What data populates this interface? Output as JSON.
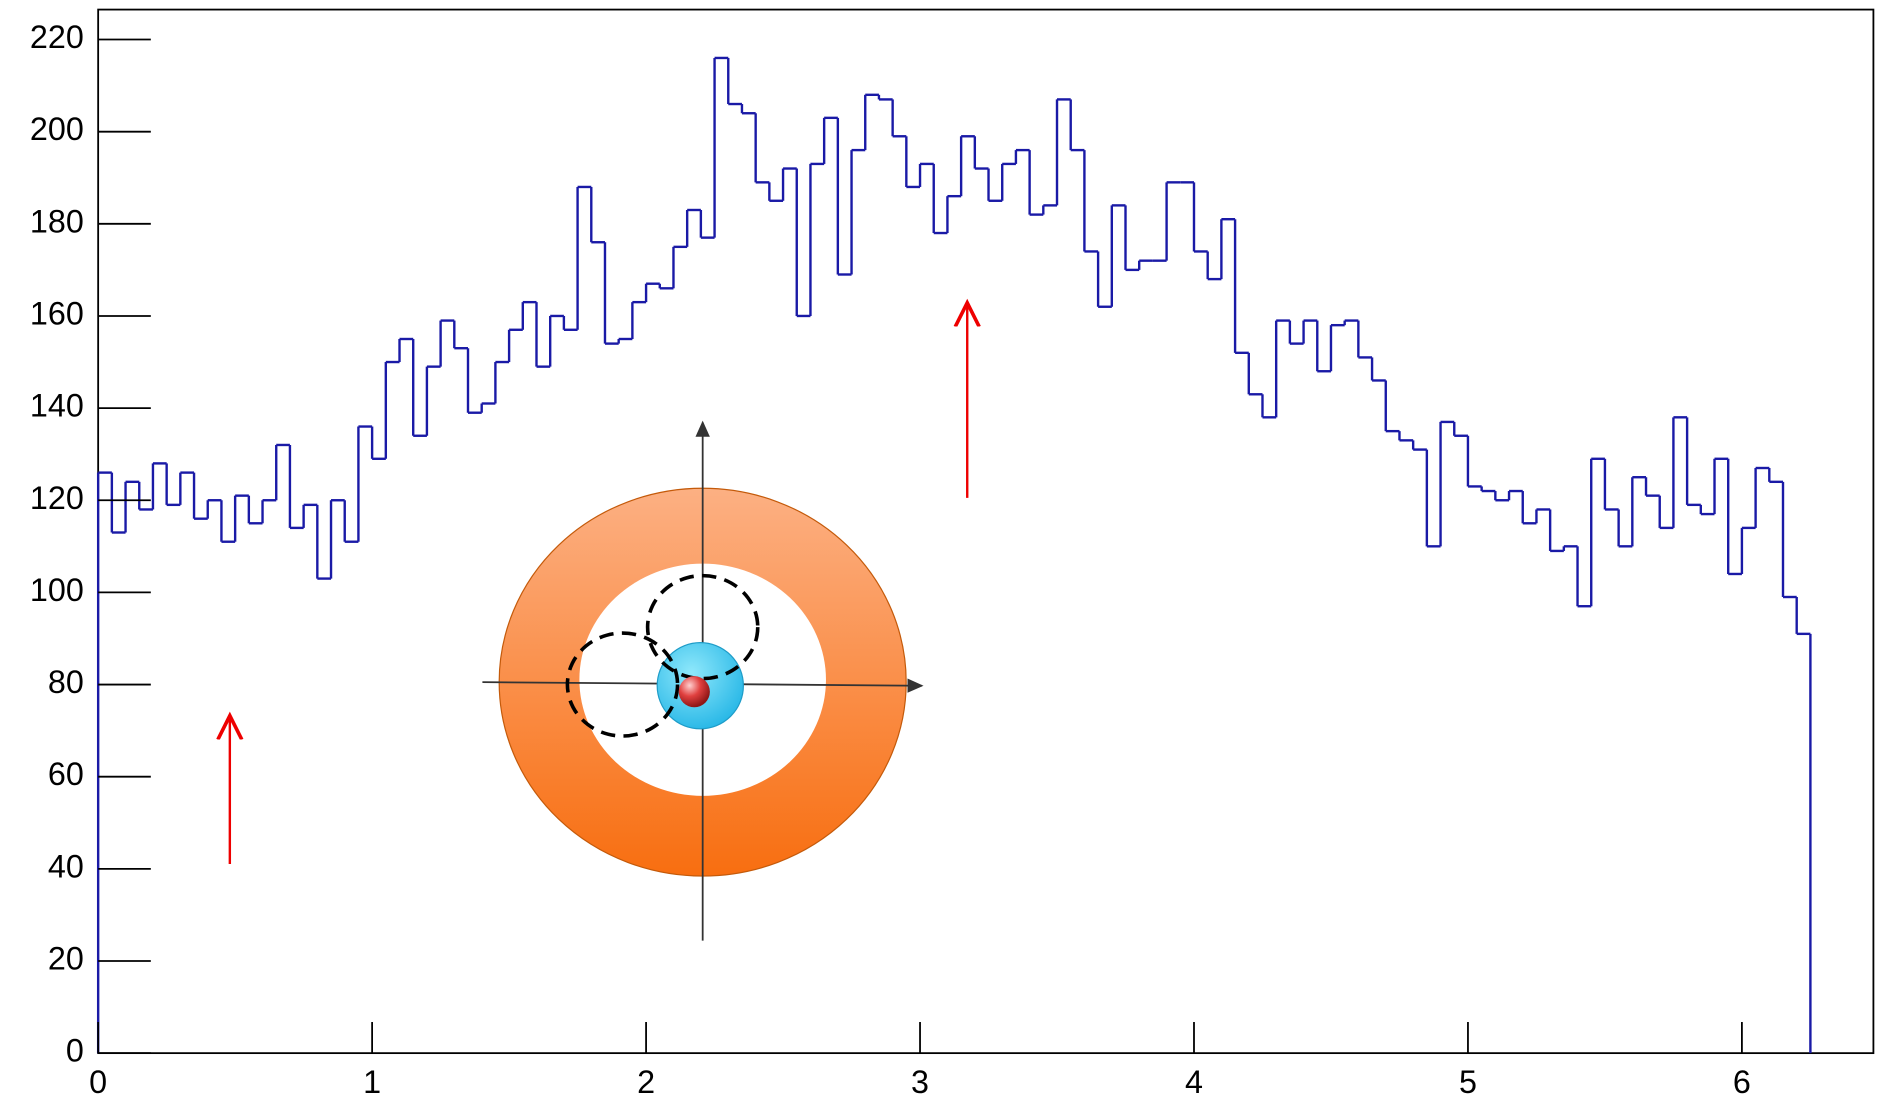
{
  "chart_data": {
    "type": "histogram",
    "bins": [
      0,
      0.05,
      0.1,
      0.15,
      0.2,
      0.25,
      0.3,
      0.35,
      0.4,
      0.45,
      0.5,
      0.55,
      0.6,
      0.65,
      0.7,
      0.75,
      0.8,
      0.85,
      0.9,
      0.95,
      1,
      1.05,
      1.1,
      1.15,
      1.2,
      1.25,
      1.3,
      1.35,
      1.4,
      1.45,
      1.5,
      1.55,
      1.6,
      1.65,
      1.7,
      1.75,
      1.8,
      1.85,
      1.9,
      1.95,
      2,
      2.05,
      2.1,
      2.15,
      2.2,
      2.25,
      2.3,
      2.35,
      2.4,
      2.45,
      2.5,
      2.55,
      2.6,
      2.65,
      2.7,
      2.75,
      2.8,
      2.85,
      2.9,
      2.95,
      3,
      3.05,
      3.1,
      3.15,
      3.2,
      3.25,
      3.3,
      3.35,
      3.4,
      3.45,
      3.5,
      3.55,
      3.6,
      3.65,
      3.7,
      3.75,
      3.8,
      3.85,
      3.9,
      3.95,
      4,
      4.05,
      4.1,
      4.15,
      4.2,
      4.25,
      4.3,
      4.35,
      4.4,
      4.45,
      4.5,
      4.55,
      4.6,
      4.65,
      4.7,
      4.75,
      4.8,
      4.85,
      4.9,
      4.95,
      5,
      5.05,
      5.1,
      5.15,
      5.2,
      5.25,
      5.3,
      5.35,
      5.4,
      5.45,
      5.5,
      5.55,
      5.6,
      5.65,
      5.7,
      5.75,
      5.8,
      5.85,
      5.9,
      5.95,
      6,
      6.05,
      6.1,
      6.15,
      6.2,
      6.25
    ],
    "values": [
      126,
      113,
      124,
      118,
      128,
      119,
      126,
      116,
      120,
      111,
      121,
      115,
      120,
      132,
      114,
      119,
      103,
      120,
      111,
      136,
      129,
      150,
      155,
      134,
      149,
      159,
      153,
      139,
      141,
      150,
      157,
      163,
      149,
      160,
      157,
      188,
      176,
      154,
      155,
      163,
      167,
      166,
      175,
      183,
      177,
      216,
      206,
      204,
      189,
      185,
      192,
      160,
      193,
      203,
      169,
      196,
      208,
      207,
      199,
      188,
      193,
      178,
      186,
      199,
      192,
      185,
      193,
      196,
      182,
      184,
      207,
      196,
      174,
      162,
      184,
      170,
      172,
      172,
      189,
      189,
      174,
      168,
      181,
      152,
      143,
      138,
      159,
      154,
      159,
      148,
      158,
      159,
      151,
      146,
      135,
      133,
      131,
      110,
      137,
      134,
      123,
      122,
      120,
      122,
      115,
      118,
      109,
      110,
      97,
      129,
      118,
      110,
      125,
      121,
      114,
      138,
      119,
      117,
      129,
      104,
      114,
      127,
      124,
      99,
      91
    ],
    "color": "#1a1aa6",
    "xlim": [
      0,
      6.48
    ],
    "xticks": [
      0,
      1,
      2,
      3,
      4,
      5,
      6
    ],
    "ylim": [
      0,
      226.5
    ],
    "yticks": [
      0,
      20,
      40,
      60,
      80,
      100,
      120,
      140,
      160,
      180,
      200,
      220
    ]
  }
}
